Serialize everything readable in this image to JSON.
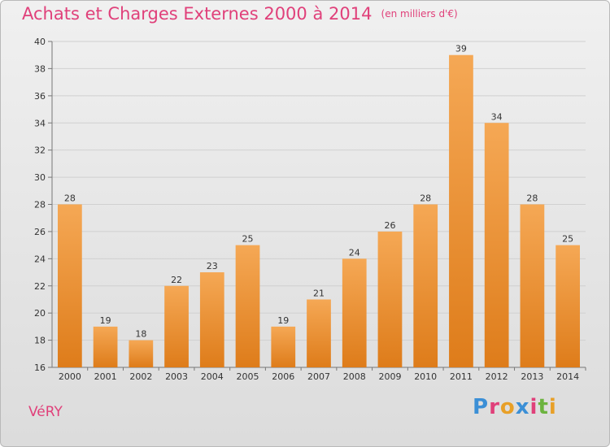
{
  "header": {
    "title": "Achats et Charges Externes 2000 à 2014",
    "unit_note": "(en milliers d'€)"
  },
  "footer": {
    "commune": "VéRY",
    "logo_letters": [
      "P",
      "r",
      "o",
      "x",
      "i",
      "t",
      "i"
    ]
  },
  "colors": {
    "title": "#e0407a",
    "bar_light": "#f5a855",
    "bar_dark": "#de7c1a",
    "logo": [
      "#3b8fd6",
      "#e0407a",
      "#e8a028",
      "#3b8fd6",
      "#e0407a",
      "#6cb33f",
      "#e8a028"
    ]
  },
  "chart_data": {
    "type": "bar",
    "categories": [
      "2000",
      "2001",
      "2002",
      "2003",
      "2004",
      "2005",
      "2006",
      "2007",
      "2008",
      "2009",
      "2010",
      "2011",
      "2012",
      "2013",
      "2014"
    ],
    "values": [
      28,
      19,
      18,
      22,
      23,
      25,
      19,
      21,
      24,
      26,
      28,
      39,
      34,
      28,
      25
    ],
    "data_labels": [
      "28",
      "19",
      "18",
      "22",
      "23",
      "25",
      "19",
      "21",
      "24",
      "26",
      "28",
      "39",
      "34",
      "28",
      "25"
    ],
    "ylim": [
      16,
      40
    ],
    "yticks": [
      16,
      18,
      20,
      22,
      24,
      26,
      28,
      30,
      32,
      34,
      36,
      38,
      40
    ],
    "ytick_labels": [
      "16",
      "18",
      "20",
      "22",
      "24",
      "26",
      "28",
      "30",
      "32",
      "34",
      "36",
      "38",
      "40"
    ],
    "grid": true
  }
}
